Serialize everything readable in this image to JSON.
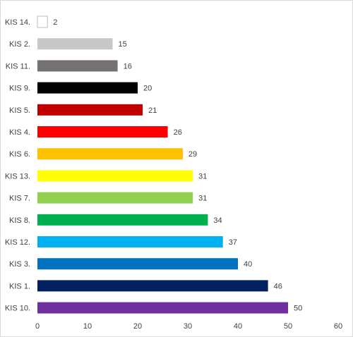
{
  "chart_data": {
    "type": "bar",
    "orientation": "horizontal",
    "title": "",
    "xlabel": "",
    "ylabel": "",
    "xlim": [
      0,
      60
    ],
    "x_ticks": [
      0,
      10,
      20,
      30,
      40,
      50,
      60
    ],
    "x_tick_labels": [
      "0",
      "10",
      "20",
      "30",
      "40",
      "50",
      "60"
    ],
    "grid": false,
    "legend": "none",
    "data_labels": true,
    "categories": [
      "KIS 14.",
      "KIS 2.",
      "KIS 11.",
      "KIS 9.",
      "KIS 5.",
      "KIS 4.",
      "KIS 6.",
      "KIS 13.",
      "KIS 7.",
      "KIS 8.",
      "KIS 12.",
      "KIS 3.",
      "KIS 1.",
      "KIS 10."
    ],
    "values": [
      2,
      15,
      16,
      20,
      21,
      26,
      29,
      31,
      31,
      34,
      37,
      40,
      46,
      50
    ],
    "value_labels": [
      "2",
      "15",
      "16",
      "20",
      "21",
      "26",
      "29",
      "31",
      "31",
      "34",
      "37",
      "40",
      "46",
      "50"
    ],
    "colors": [
      "#ffffff",
      "#c8c8c8",
      "#767171",
      "#000000",
      "#c00000",
      "#ff0000",
      "#ffc000",
      "#ffff00",
      "#92d050",
      "#00b050",
      "#00b0f0",
      "#0070c0",
      "#002060",
      "#7030a0"
    ],
    "bar_border_color": "#bfbfbf"
  }
}
